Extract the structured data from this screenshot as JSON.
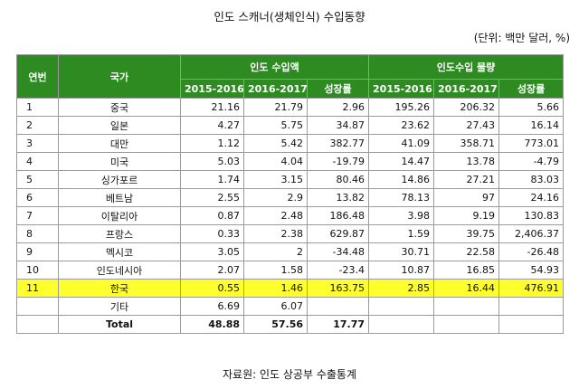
{
  "title": "인도 스캐너(생체인식) 수입동향",
  "unit": "(단위: 백만 달러, %)",
  "source": "자료원: 인도 상공부 수출통계",
  "header": {
    "rank": "연번",
    "country": "국가",
    "group1": "인도 수입액",
    "group2": "인도수입 물량",
    "sub": [
      "2015-2016",
      "2016-2017",
      "성장률",
      "2015-2016",
      "2016-2017",
      "성장률"
    ]
  },
  "rows": [
    {
      "rank": "1",
      "country": "중국",
      "v": [
        "21.16",
        "21.79",
        "2.96",
        "195.26",
        "206.32",
        "5.66"
      ]
    },
    {
      "rank": "2",
      "country": "일본",
      "v": [
        "4.27",
        "5.75",
        "34.87",
        "23.62",
        "27.43",
        "16.14"
      ]
    },
    {
      "rank": "3",
      "country": "대만",
      "v": [
        "1.12",
        "5.42",
        "382.77",
        "41.09",
        "358.71",
        "773.01"
      ]
    },
    {
      "rank": "4",
      "country": "미국",
      "v": [
        "5.03",
        "4.04",
        "-19.79",
        "14.47",
        "13.78",
        "-4.79"
      ]
    },
    {
      "rank": "5",
      "country": "싱가포르",
      "v": [
        "1.74",
        "3.15",
        "80.46",
        "14.86",
        "27.21",
        "83.03"
      ]
    },
    {
      "rank": "6",
      "country": "베트남",
      "v": [
        "2.55",
        "2.9",
        "13.82",
        "78.13",
        "97",
        "24.16"
      ]
    },
    {
      "rank": "7",
      "country": "이탈리아",
      "v": [
        "0.87",
        "2.48",
        "186.48",
        "3.98",
        "9.19",
        "130.83"
      ]
    },
    {
      "rank": "8",
      "country": "프랑스",
      "v": [
        "0.33",
        "2.38",
        "629.87",
        "1.59",
        "39.75",
        "2,406.37"
      ]
    },
    {
      "rank": "9",
      "country": "멕시코",
      "v": [
        "3.05",
        "2",
        "-34.48",
        "30.71",
        "22.58",
        "-26.48"
      ]
    },
    {
      "rank": "10",
      "country": "인도네시아",
      "v": [
        "2.07",
        "1.58",
        "-23.4",
        "10.87",
        "16.85",
        "54.93"
      ]
    },
    {
      "rank": "11",
      "country": "한국",
      "v": [
        "0.55",
        "1.46",
        "163.75",
        "2.85",
        "16.44",
        "476.91"
      ]
    },
    {
      "rank": "",
      "country": "기타",
      "v": [
        "6.69",
        "6.07",
        "",
        "",
        "",
        ""
      ]
    },
    {
      "rank": "",
      "country": "Total",
      "v": [
        "48.88",
        "57.56",
        "17.77",
        "",
        "",
        ""
      ]
    }
  ],
  "highlight_color": "#ffff2e",
  "header_color": "#2e8b22"
}
